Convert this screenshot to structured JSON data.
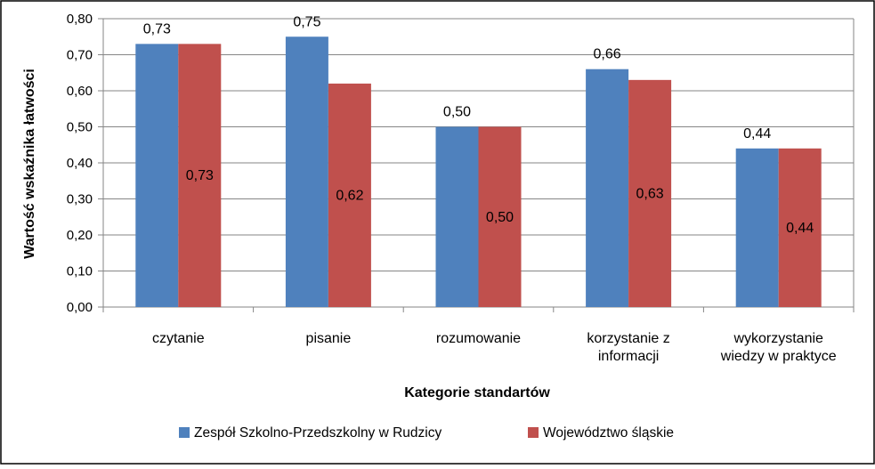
{
  "chart_data": {
    "type": "bar",
    "xlabel": "Kategorie standartów",
    "ylabel": "Wartość wskaźnika łatwości",
    "ylim": [
      0,
      0.8
    ],
    "yticks": [
      "0,00",
      "0,10",
      "0,20",
      "0,30",
      "0,40",
      "0,50",
      "0,60",
      "0,70",
      "0,80"
    ],
    "grid": true,
    "legend_position": "bottom",
    "categories": [
      [
        "czytanie"
      ],
      [
        "pisanie"
      ],
      [
        "rozumowanie"
      ],
      [
        "korzystanie z",
        "informacji"
      ],
      [
        "wykorzystanie",
        "wiedzy w praktyce"
      ]
    ],
    "series": [
      {
        "name": "Zespół Szkolno-Przedszkolny w Rudzicy",
        "color": "#4f81bd",
        "values": [
          0.73,
          0.75,
          0.5,
          0.66,
          0.44
        ],
        "labels": [
          "0,73",
          "0,75",
          "0,50",
          "0,66",
          "0,44"
        ]
      },
      {
        "name": "Województwo śląskie",
        "color": "#c0504d",
        "values": [
          0.73,
          0.62,
          0.5,
          0.63,
          0.44
        ],
        "labels": [
          "0,73",
          "0,62",
          "0,50",
          "0,63",
          "0,44"
        ]
      }
    ]
  }
}
